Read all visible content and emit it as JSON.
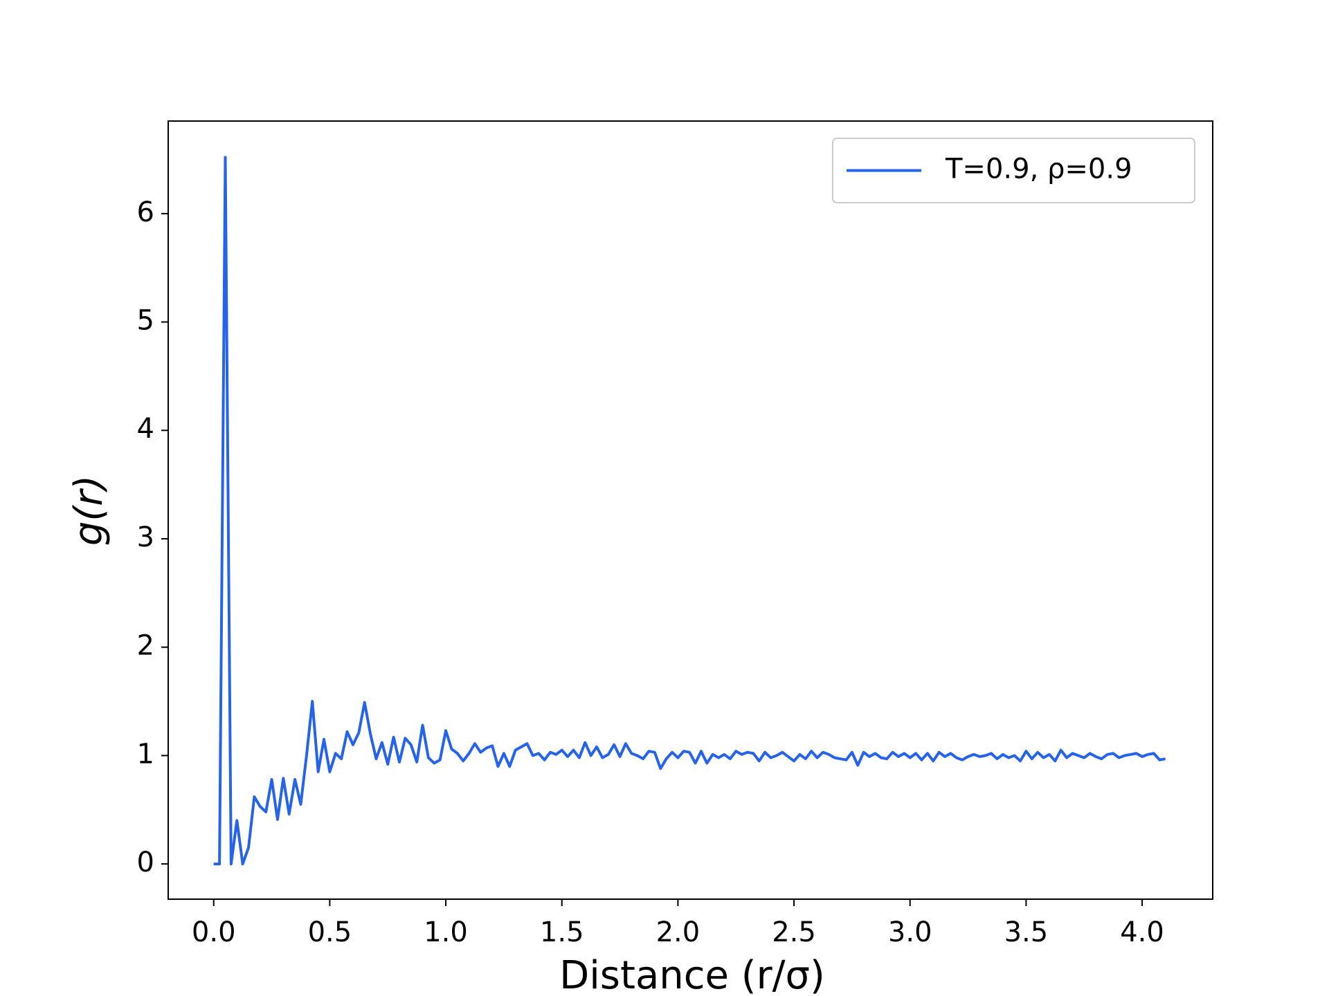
{
  "chart_data": {
    "type": "line",
    "x_label": "Distance (r/σ)",
    "y_label": "g(r)",
    "x": [
      0,
      0.025,
      0.05,
      0.075,
      0.1,
      0.125,
      0.15,
      0.175,
      0.2,
      0.225,
      0.25,
      0.275,
      0.3,
      0.325,
      0.35,
      0.375,
      0.4,
      0.425,
      0.45,
      0.475,
      0.5,
      0.525,
      0.55,
      0.575,
      0.6,
      0.625,
      0.65,
      0.675,
      0.7,
      0.725,
      0.75,
      0.775,
      0.8,
      0.825,
      0.85,
      0.875,
      0.9,
      0.925,
      0.95,
      0.975,
      1,
      1.025,
      1.05,
      1.075,
      1.1,
      1.125,
      1.15,
      1.175,
      1.2,
      1.225,
      1.25,
      1.275,
      1.3,
      1.325,
      1.35,
      1.375,
      1.4,
      1.425,
      1.45,
      1.475,
      1.5,
      1.525,
      1.55,
      1.575,
      1.6,
      1.625,
      1.65,
      1.675,
      1.7,
      1.725,
      1.75,
      1.775,
      1.8,
      1.825,
      1.85,
      1.875,
      1.9,
      1.925,
      1.95,
      1.975,
      2,
      2.025,
      2.05,
      2.075,
      2.1,
      2.125,
      2.15,
      2.175,
      2.2,
      2.225,
      2.25,
      2.275,
      2.3,
      2.325,
      2.35,
      2.375,
      2.4,
      2.425,
      2.45,
      2.475,
      2.5,
      2.525,
      2.55,
      2.575,
      2.6,
      2.625,
      2.65,
      2.675,
      2.7,
      2.725,
      2.75,
      2.775,
      2.8,
      2.825,
      2.85,
      2.875,
      2.9,
      2.925,
      2.95,
      2.975,
      3,
      3.025,
      3.05,
      3.075,
      3.1,
      3.125,
      3.15,
      3.175,
      3.2,
      3.225,
      3.25,
      3.275,
      3.3,
      3.325,
      3.35,
      3.375,
      3.4,
      3.425,
      3.45,
      3.475,
      3.5,
      3.525,
      3.55,
      3.575,
      3.6,
      3.625,
      3.65,
      3.675,
      3.7,
      3.725,
      3.75,
      3.775,
      3.8,
      3.825,
      3.85,
      3.875,
      3.9,
      3.925,
      3.95,
      3.975,
      4,
      4.025,
      4.05,
      4.075,
      4.1
    ],
    "series": [
      {
        "name": "T=0.9, ρ=0.9",
        "color": "#2563eb",
        "values": [
          0,
          0,
          6.52,
          0,
          0.4,
          0,
          0.15,
          0.62,
          0.53,
          0.48,
          0.78,
          0.41,
          0.79,
          0.46,
          0.78,
          0.55,
          1.0,
          1.5,
          0.85,
          1.15,
          0.85,
          1.02,
          0.97,
          1.22,
          1.1,
          1.21,
          1.49,
          1.2,
          0.97,
          1.12,
          0.92,
          1.17,
          0.94,
          1.16,
          1.1,
          0.94,
          1.28,
          0.98,
          0.93,
          0.96,
          1.23,
          1.06,
          1.02,
          0.95,
          1.02,
          1.11,
          1.03,
          1.07,
          1.09,
          0.9,
          1.02,
          0.9,
          1.05,
          1.08,
          1.11,
          1.0,
          1.02,
          0.96,
          1.03,
          1.01,
          1.05,
          0.99,
          1.05,
          0.98,
          1.12,
          1.0,
          1.08,
          0.98,
          1.01,
          1.1,
          0.99,
          1.11,
          1.02,
          1.0,
          0.97,
          1.04,
          1.03,
          0.88,
          0.97,
          1.03,
          0.98,
          1.04,
          1.03,
          0.93,
          1.04,
          0.93,
          1.01,
          0.98,
          1.01,
          0.97,
          1.04,
          1.01,
          1.03,
          1.02,
          0.95,
          1.03,
          0.98,
          1.0,
          1.03,
          0.99,
          0.95,
          1.01,
          0.97,
          1.04,
          0.98,
          1.03,
          1.01,
          0.98,
          0.97,
          0.96,
          1.03,
          0.91,
          1.03,
          0.99,
          1.02,
          0.98,
          0.97,
          1.03,
          0.99,
          1.02,
          0.98,
          1.02,
          0.96,
          1.02,
          0.95,
          1.03,
          0.99,
          1.02,
          0.98,
          0.96,
          0.99,
          1.01,
          0.99,
          1.0,
          1.02,
          0.97,
          1.01,
          0.98,
          1.0,
          0.95,
          1.04,
          0.97,
          1.03,
          0.98,
          1.01,
          0.95,
          1.05,
          0.98,
          1.02,
          1.0,
          0.98,
          1.02,
          0.99,
          0.97,
          1.01,
          1.02,
          0.98,
          1.0,
          1.01,
          1.02,
          0.99,
          1.01,
          1.02,
          0.96,
          0.97
        ]
      }
    ],
    "xlim": [
      -0.196,
      4.304
    ],
    "ylim": [
      -0.325,
      6.854
    ],
    "xticks": [
      {
        "value": 0,
        "label": "0.0"
      },
      0.5,
      {
        "value": 1,
        "label": "1.0"
      },
      1.5,
      {
        "value": 2,
        "label": "2.0"
      },
      2.5,
      {
        "value": 3,
        "label": "3.0"
      },
      3.5,
      {
        "value": 4,
        "label": "4.0"
      }
    ],
    "yticks": [
      0,
      1,
      2,
      3,
      4,
      5,
      6
    ],
    "legend": "upper right",
    "grid": false
  }
}
